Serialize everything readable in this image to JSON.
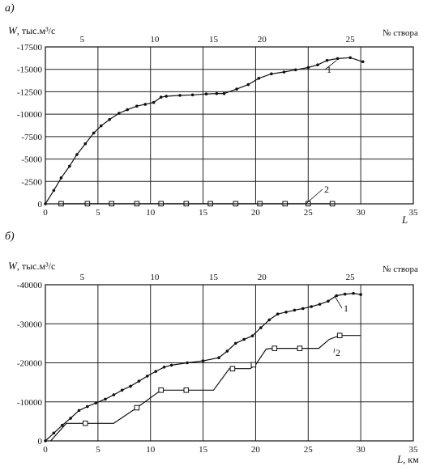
{
  "chart_data": [
    {
      "panel_label": "а)",
      "type": "line",
      "y_axis_title": "W",
      "y_axis_unit": ", тыс.м³/с",
      "top_axis_label": "№ створа",
      "x_axis_title": "L",
      "x_axis_unit": "",
      "xlim": [
        0,
        35
      ],
      "ylim": [
        0,
        -17500
      ],
      "y_ticks": [
        0,
        -2500,
        -5000,
        -7500,
        -10000,
        -12500,
        -15000,
        -17500
      ],
      "y_tick_labels": [
        "0",
        "-2500",
        "-5000",
        "-7500",
        "-10000",
        "-12500",
        "-15000",
        "-17500"
      ],
      "x_ticks": [
        0,
        5,
        10,
        15,
        20,
        25,
        30,
        35
      ],
      "x_tick_labels": [
        "0",
        "5",
        "10",
        "15",
        "20",
        "25",
        "30",
        "35"
      ],
      "top_ticks": [
        5,
        10,
        15,
        20,
        25
      ],
      "top_tick_positions_km": [
        3.5,
        10.4,
        16.0,
        20.6,
        29.0
      ],
      "grid": true,
      "series": [
        {
          "label": "1",
          "marker": "dot",
          "x": [
            0.0,
            0.8,
            1.5,
            2.3,
            3.0,
            3.8,
            4.6,
            5.3,
            6.1,
            7.0,
            7.8,
            8.7,
            9.5,
            10.3,
            11.0,
            11.5,
            12.8,
            14.0,
            15.3,
            16.3,
            17.0,
            18.2,
            19.3,
            20.3,
            21.5,
            22.7,
            23.8,
            25.0,
            25.9,
            26.8,
            27.8,
            29.0,
            30.2
          ],
          "y": [
            0,
            -1500,
            -2900,
            -4200,
            -5500,
            -6700,
            -7900,
            -8700,
            -9400,
            -10100,
            -10500,
            -10900,
            -11100,
            -11300,
            -11900,
            -12000,
            -12100,
            -12150,
            -12250,
            -12300,
            -12300,
            -12800,
            -13300,
            -14000,
            -14500,
            -14700,
            -14950,
            -15200,
            -15500,
            -16000,
            -16200,
            -16300,
            -15850
          ]
        },
        {
          "label": "2",
          "marker": "square",
          "x": [
            1.5,
            4.0,
            6.3,
            8.7,
            11.0,
            13.4,
            15.7,
            18.1,
            20.4,
            22.8,
            25.0,
            27.3
          ],
          "y": [
            -20,
            -20,
            -20,
            -20,
            -20,
            -20,
            -20,
            -20,
            -20,
            -20,
            -20,
            -20
          ]
        }
      ]
    },
    {
      "panel_label": "б)",
      "type": "line",
      "y_axis_title": "W",
      "y_axis_unit": ", тыс.м³/с",
      "top_axis_label": "№ створа",
      "x_axis_title": "L",
      "x_axis_unit": ", км",
      "xlim": [
        0,
        35
      ],
      "ylim": [
        0,
        -40000
      ],
      "y_ticks": [
        0,
        -10000,
        -20000,
        -30000,
        -40000
      ],
      "y_tick_labels": [
        "0",
        "-10000",
        "-20000",
        "-30000",
        "-40000"
      ],
      "x_ticks": [
        0,
        5,
        10,
        15,
        20,
        25,
        30,
        35
      ],
      "x_tick_labels": [
        "0",
        "5",
        "10",
        "15",
        "20",
        "25",
        "30",
        "35"
      ],
      "top_ticks": [
        5,
        10,
        15,
        20,
        25
      ],
      "top_tick_positions_km": [
        3.5,
        10.4,
        16.0,
        20.6,
        29.0
      ],
      "grid": true,
      "series": [
        {
          "label": "1",
          "marker": "dot",
          "x": [
            0.0,
            0.8,
            1.6,
            2.4,
            3.2,
            4.0,
            4.8,
            5.7,
            6.5,
            7.3,
            8.1,
            8.9,
            9.7,
            10.5,
            11.3,
            12.0,
            13.5,
            15.0,
            16.5,
            17.3,
            18.1,
            18.9,
            19.7,
            20.5,
            21.3,
            22.1,
            22.9,
            23.7,
            24.5,
            25.3,
            26.1,
            26.9,
            27.7,
            28.5,
            29.3,
            30.0
          ],
          "y": [
            0,
            -2000,
            -4000,
            -5800,
            -7800,
            -8800,
            -9700,
            -10700,
            -11800,
            -13000,
            -14000,
            -15300,
            -16600,
            -17800,
            -18900,
            -19400,
            -20000,
            -20500,
            -21300,
            -23000,
            -25000,
            -26000,
            -26900,
            -29000,
            -31000,
            -32500,
            -33000,
            -33500,
            -33900,
            -34400,
            -35000,
            -35800,
            -37200,
            -37600,
            -37800,
            -37500
          ]
        },
        {
          "label": "2",
          "marker": "square",
          "x": [
            0.5,
            2.0,
            4.0,
            6.5,
            8.7,
            11.0,
            13.0,
            16.0,
            17.5,
            19.5,
            20.0,
            21.0,
            21.5,
            24.0,
            26.0,
            27.0,
            28.0,
            30.0
          ],
          "y": [
            0,
            -4500,
            -4500,
            -4500,
            -8500,
            -13000,
            -13000,
            -13000,
            -18500,
            -18500,
            -19500,
            -23500,
            -23700,
            -23700,
            -23700,
            -26000,
            -27000,
            -27000
          ],
          "marker_x": [
            3.8,
            8.7,
            11.0,
            13.4,
            17.8,
            19.8,
            21.8,
            24.2,
            28.0
          ],
          "marker_y": [
            -4500,
            -8500,
            -13000,
            -13000,
            -18500,
            -19500,
            -23700,
            -23700,
            -27000
          ]
        }
      ]
    }
  ]
}
